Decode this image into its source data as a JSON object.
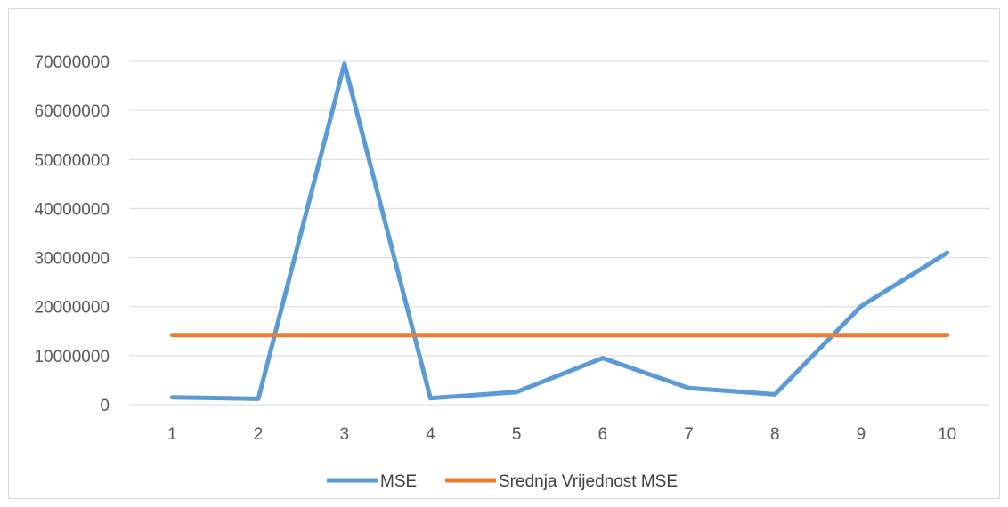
{
  "chart_data": {
    "type": "line",
    "categories": [
      "1",
      "2",
      "3",
      "4",
      "5",
      "6",
      "7",
      "8",
      "9",
      "10"
    ],
    "yticks": [
      "0",
      "10000000",
      "20000000",
      "30000000",
      "40000000",
      "50000000",
      "60000000",
      "70000000"
    ],
    "ylim": [
      0,
      70000000
    ],
    "grid": true,
    "legend_position": "bottom",
    "series": [
      {
        "name": "MSE",
        "color": "#5b9bd5",
        "values": [
          1500000,
          1200000,
          69500000,
          1300000,
          2600000,
          9500000,
          3400000,
          2100000,
          20100000,
          31000000
        ]
      },
      {
        "name": "Srednja Vrijednost MSE",
        "color": "#ed7d31",
        "values": [
          14200000,
          14200000,
          14200000,
          14200000,
          14200000,
          14200000,
          14200000,
          14200000,
          14200000,
          14200000
        ]
      }
    ],
    "gridline_color": "#d9d9d9"
  }
}
